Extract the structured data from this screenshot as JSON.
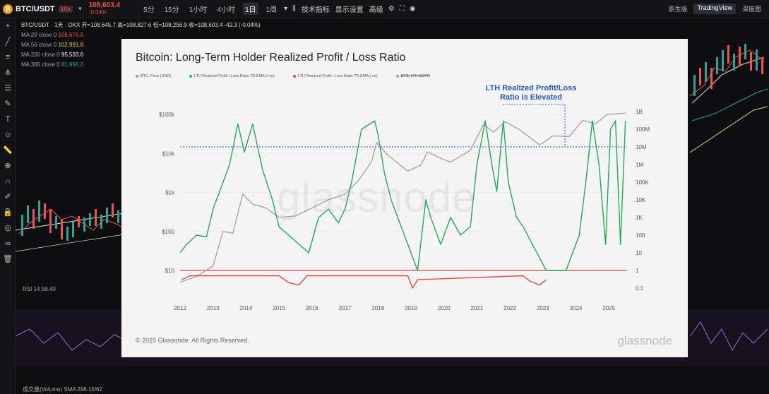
{
  "topbar": {
    "symbol": "BTC/USDT",
    "leverage": "10x",
    "price": "108,603.4",
    "change": "-0.04%",
    "timeframes": [
      "5分",
      "15分",
      "1小时",
      "4小时",
      "1日",
      "1周"
    ],
    "active_timeframe": "1日",
    "indicators": "技术指标",
    "display": "显示设置",
    "advanced": "高级",
    "views": [
      "原生版",
      "TradingView",
      "深度图"
    ],
    "active_view": "TradingView"
  },
  "chart_info": {
    "line1": "BTC/USDT · 1天 · OKX  开=108,645.7  高=108,827.6  低=108,256.9  收=108,603.4  -42.3 (-0.04%)",
    "ma": [
      {
        "label": "MA 20 close 0",
        "value": "106,676.9",
        "color": "#ef5350"
      },
      {
        "label": "MA 50 close 0",
        "value": "102,991.8",
        "color": "#f0d060"
      },
      {
        "label": "MA 200 close 0",
        "value": "95,533.6",
        "color": "#ffffff"
      },
      {
        "label": "MA 365 close 0",
        "value": "81,996.2",
        "color": "#26a69a"
      }
    ],
    "rsi": "RSI 14  58.40",
    "volume": "成交量(Volume) SMA  298.15/62"
  },
  "overlay": {
    "title": "Bitcoin: Long-Term Holder Realized Profit / Loss Ratio",
    "annotation_line1": "LTH Realized Profit/Loss",
    "annotation_line2": "Ratio is Elevated",
    "copyright": "© 2025 Glassnode. All Rights Reserved.",
    "brand": "glassnode",
    "watermark": "glassnode",
    "legend": [
      {
        "label": "BTC: Price [USD]",
        "color": "#999999",
        "strike": false
      },
      {
        "label": "LTH Realized Profit / Loss Ratio 7D-EMA (+ve)",
        "color": "#22bb66",
        "strike": false
      },
      {
        "label": "LTH Realized Profit / Loss Ratio 7D-EMA (-ve)",
        "color": "#ee4444",
        "strike": false
      },
      {
        "label": "BTC: LTH-SOPR",
        "color": "#88aacc",
        "strike": true
      }
    ]
  },
  "chart_data": {
    "type": "line",
    "title": "Bitcoin: Long-Term Holder Realized Profit / Loss Ratio",
    "x_ticks": [
      "2012",
      "2013",
      "2014",
      "2015",
      "2016",
      "2017",
      "2018",
      "2019",
      "2020",
      "2021",
      "2022",
      "2023",
      "2024",
      "2025"
    ],
    "y_left_ticks": [
      "$100k",
      "$10k",
      "$1k",
      "$100",
      "$10"
    ],
    "y_right_ticks": [
      "1B",
      "100M",
      "10M",
      "1M",
      "100K",
      "10K",
      "1K",
      "100",
      "10",
      "1",
      "0.1"
    ],
    "y_scale": "log",
    "reference_line_ratio": 1,
    "elevated_threshold_ratio": 10000000,
    "series": [
      {
        "name": "BTC: Price [USD]",
        "axis": "left",
        "x": [
          2012.0,
          2012.5,
          2013.0,
          2013.3,
          2013.6,
          2013.9,
          2014.2,
          2014.6,
          2015.0,
          2015.5,
          2016.0,
          2016.5,
          2017.0,
          2017.4,
          2017.8,
          2017.96,
          2018.3,
          2018.9,
          2019.3,
          2019.5,
          2019.9,
          2020.2,
          2020.8,
          2021.2,
          2021.5,
          2021.85,
          2022.3,
          2022.9,
          2023.3,
          2023.8,
          2024.2,
          2024.6,
          2024.95,
          2025.5
        ],
        "values": [
          5,
          7,
          13,
          100,
          90,
          900,
          500,
          400,
          230,
          250,
          400,
          650,
          900,
          2000,
          6000,
          19000,
          9000,
          3500,
          5000,
          11000,
          7500,
          6000,
          12000,
          55000,
          35000,
          65000,
          40000,
          16500,
          28000,
          27000,
          70000,
          58000,
          100000,
          108000
        ]
      },
      {
        "name": "LTH Realized Profit / Loss Ratio 7D-EMA (+ve)",
        "axis": "right",
        "x": [
          2012.0,
          2012.2,
          2012.5,
          2012.8,
          2013.0,
          2013.2,
          2013.5,
          2013.75,
          2013.95,
          2014.2,
          2014.5,
          2014.8,
          2015.0,
          2015.9,
          2016.2,
          2016.5,
          2016.8,
          2017.0,
          2017.2,
          2017.5,
          2017.9,
          2018.0,
          2018.2,
          2018.4,
          2018.6,
          2018.8,
          2019.0,
          2019.2,
          2019.45,
          2019.6,
          2019.9,
          2020.2,
          2020.5,
          2020.8,
          2021.0,
          2021.25,
          2021.45,
          2021.6,
          2021.8,
          2021.95,
          2022.2,
          2022.4,
          2023.1,
          2023.4,
          2023.7,
          2023.9,
          2024.1,
          2024.3,
          2024.5,
          2024.7,
          2024.9,
          2025.05,
          2025.2,
          2025.35,
          2025.5
        ],
        "values": [
          10,
          30,
          100,
          80,
          3000,
          30000,
          1000000,
          200000000,
          5000000,
          200000000,
          500000,
          10000,
          300,
          10,
          1000,
          3000,
          500,
          3000,
          100000,
          100000000,
          300000000,
          50000000,
          300000,
          10000,
          1000,
          100,
          10,
          1,
          10000,
          1000,
          30,
          1000,
          100,
          300,
          1000000,
          300000000,
          1000000,
          30000,
          300000000,
          100000,
          1000,
          300,
          1,
          1,
          1,
          10,
          100,
          100000,
          300000000,
          1000000,
          30,
          100000000,
          300000000,
          30,
          300000000
        ]
      },
      {
        "name": "LTH Realized Profit / Loss Ratio 7D-EMA (-ve)",
        "axis": "right",
        "x": [
          2012.05,
          2012.3,
          2015.0,
          2015.3,
          2015.6,
          2015.85,
          2018.9,
          2019.05,
          2019.2,
          2022.4,
          2022.6,
          2022.9,
          2023.1
        ],
        "values": [
          0.3,
          0.5,
          0.5,
          0.2,
          0.15,
          0.5,
          0.5,
          0.1,
          0.3,
          0.5,
          0.25,
          0.15,
          0.3
        ]
      }
    ]
  }
}
